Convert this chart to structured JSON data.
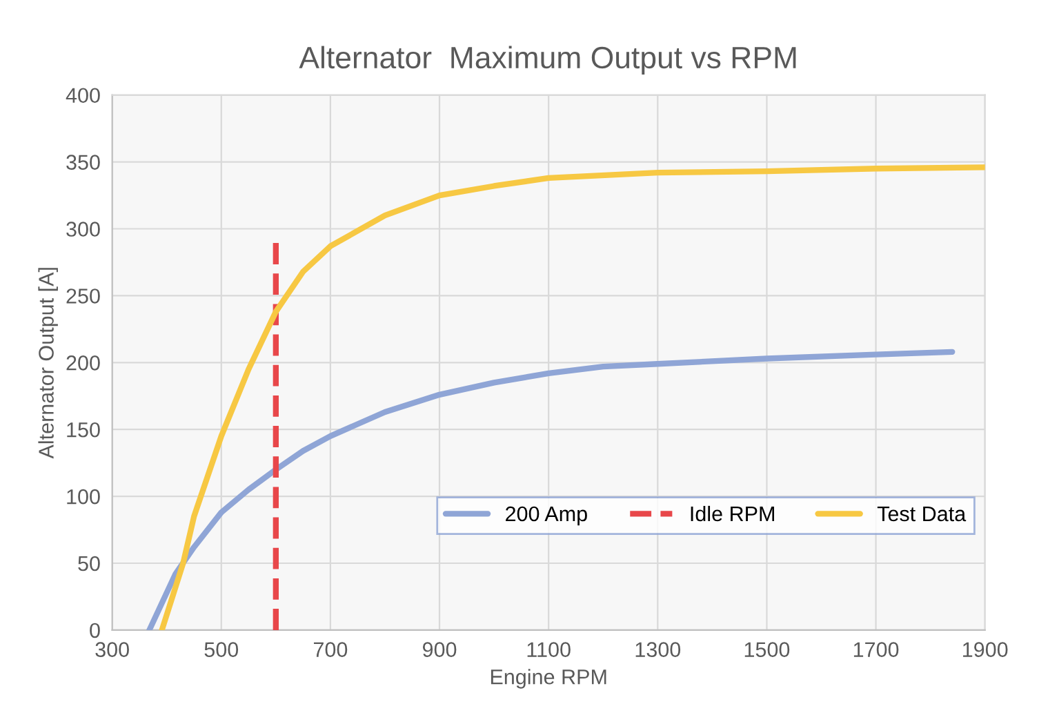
{
  "chart_data": {
    "type": "line",
    "title": "Alternator  Maximum Output vs RPM",
    "xlabel": "Engine RPM",
    "ylabel": "Alternator Output [A]",
    "xlim": [
      300,
      1900
    ],
    "xticks": [
      300,
      500,
      700,
      900,
      1100,
      1300,
      1500,
      1700,
      1900
    ],
    "ylim": [
      0,
      400
    ],
    "yticks": [
      0,
      50,
      100,
      150,
      200,
      250,
      300,
      350,
      400
    ],
    "grid": true,
    "legend": "bottom right",
    "marker": "none",
    "series": [
      {
        "name": "200 Amp",
        "color": "#8fa5d6",
        "line_style": "solid",
        "x": [
          368,
          416,
          450,
          500,
          550,
          600,
          650,
          700,
          800,
          900,
          1000,
          1100,
          1200,
          1300,
          1500,
          1700,
          1840
        ],
        "values": [
          0,
          42,
          62,
          88,
          105,
          120,
          134,
          145,
          163,
          176,
          185,
          192,
          197,
          199,
          203,
          206,
          208
        ]
      },
      {
        "name": "Idle RPM",
        "color": "#e8474a",
        "line_style": "dashed",
        "x": [
          600,
          600
        ],
        "values": [
          0,
          290
        ]
      },
      {
        "name": "Test Data",
        "color": "#f7c843",
        "line_style": "solid",
        "x": [
          391,
          430,
          450,
          500,
          550,
          600,
          650,
          700,
          800,
          900,
          1000,
          1100,
          1300,
          1500,
          1700,
          1900
        ],
        "values": [
          0,
          50,
          85,
          145,
          195,
          238,
          268,
          287,
          310,
          325,
          332,
          338,
          342,
          343,
          345,
          346
        ]
      }
    ]
  }
}
